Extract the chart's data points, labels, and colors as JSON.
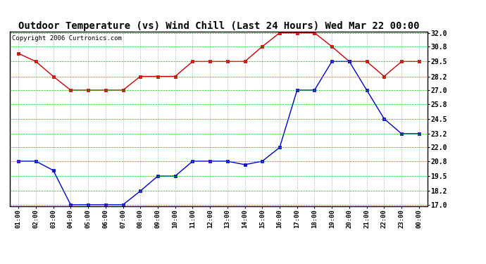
{
  "title": "Outdoor Temperature (vs) Wind Chill (Last 24 Hours) Wed Mar 22 00:00",
  "copyright": "Copyright 2006 Curtronics.com",
  "x_labels": [
    "01:00",
    "02:00",
    "03:00",
    "04:00",
    "05:00",
    "06:00",
    "07:00",
    "08:00",
    "09:00",
    "10:00",
    "11:00",
    "12:00",
    "13:00",
    "14:00",
    "15:00",
    "16:00",
    "17:00",
    "18:00",
    "19:00",
    "20:00",
    "21:00",
    "22:00",
    "23:00",
    "00:00"
  ],
  "red_data": [
    30.2,
    29.5,
    28.2,
    27.0,
    27.0,
    27.0,
    27.0,
    28.2,
    28.2,
    28.2,
    29.5,
    29.5,
    29.5,
    29.5,
    30.8,
    32.0,
    32.0,
    32.0,
    30.8,
    29.5,
    29.5,
    28.2,
    29.5,
    29.5
  ],
  "blue_data": [
    20.8,
    20.8,
    20.0,
    17.0,
    17.0,
    17.0,
    17.0,
    18.2,
    19.5,
    19.5,
    20.8,
    20.8,
    20.8,
    20.5,
    20.8,
    22.0,
    27.0,
    27.0,
    29.5,
    29.5,
    27.0,
    24.5,
    23.2,
    23.2
  ],
  "red_color": "#cc0000",
  "blue_color": "#0000cc",
  "grid_color": "#00cc00",
  "bg_color": "#ffffff",
  "y_ticks": [
    17.0,
    18.2,
    19.5,
    20.8,
    22.0,
    23.2,
    24.5,
    25.8,
    27.0,
    28.2,
    29.5,
    30.8,
    32.0
  ],
  "y_min": 17.0,
  "y_max": 32.0,
  "title_fontsize": 10,
  "copyright_fontsize": 6.5,
  "tick_fontsize": 6.5,
  "ytick_fontsize": 7
}
